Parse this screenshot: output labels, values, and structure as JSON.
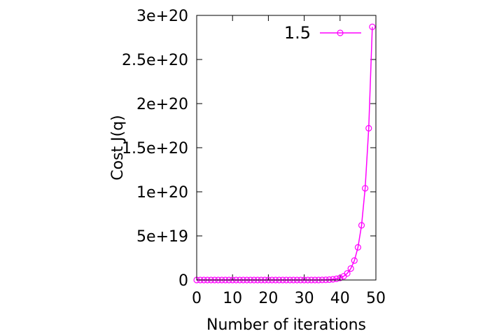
{
  "chart_data": {
    "type": "line",
    "xlabel": "Number of iterations",
    "ylabel": "Cost J(q)",
    "xlim": [
      0,
      50
    ],
    "ylim": [
      0,
      3e+20
    ],
    "xticks": [
      0,
      10,
      20,
      30,
      40,
      50
    ],
    "xtick_labels": [
      "0",
      "10",
      "20",
      "30",
      "40",
      "50"
    ],
    "yticks": [
      0,
      5e+19,
      1e+20,
      1.5e+20,
      2e+20,
      2.5e+20,
      3e+20
    ],
    "ytick_labels": [
      "0",
      "5e+19",
      "1e+20",
      "1.5e+20",
      "2e+20",
      "2.5e+20",
      "3e+20"
    ],
    "grid": false,
    "legend_position": "top-right",
    "series": [
      {
        "name": "1.5",
        "color": "#ff00ff",
        "marker": "open-circle",
        "x": [
          0,
          1,
          2,
          3,
          4,
          5,
          6,
          7,
          8,
          9,
          10,
          11,
          12,
          13,
          14,
          15,
          16,
          17,
          18,
          19,
          20,
          21,
          22,
          23,
          24,
          25,
          26,
          27,
          28,
          29,
          30,
          31,
          32,
          33,
          34,
          35,
          36,
          37,
          38,
          39,
          40,
          41,
          42,
          43,
          44,
          45,
          46,
          47,
          48,
          49
        ],
        "values": [
          0,
          0,
          0,
          0,
          0,
          0,
          0,
          0,
          0,
          0,
          0,
          0,
          0,
          0,
          0,
          0,
          0,
          0,
          0,
          0,
          0,
          0,
          0,
          0,
          0,
          0,
          0,
          0,
          0,
          0,
          0,
          0,
          0,
          0,
          0,
          1e+17,
          2e+17,
          4e+17,
          8e+17,
          1.4e+18,
          2.4e+18,
          4.2e+18,
          7.5e+18,
          1.3e+19,
          2.2e+19,
          3.7e+19,
          6.2e+19,
          1.04e+20,
          1.72e+20,
          2.87e+20
        ]
      }
    ]
  }
}
